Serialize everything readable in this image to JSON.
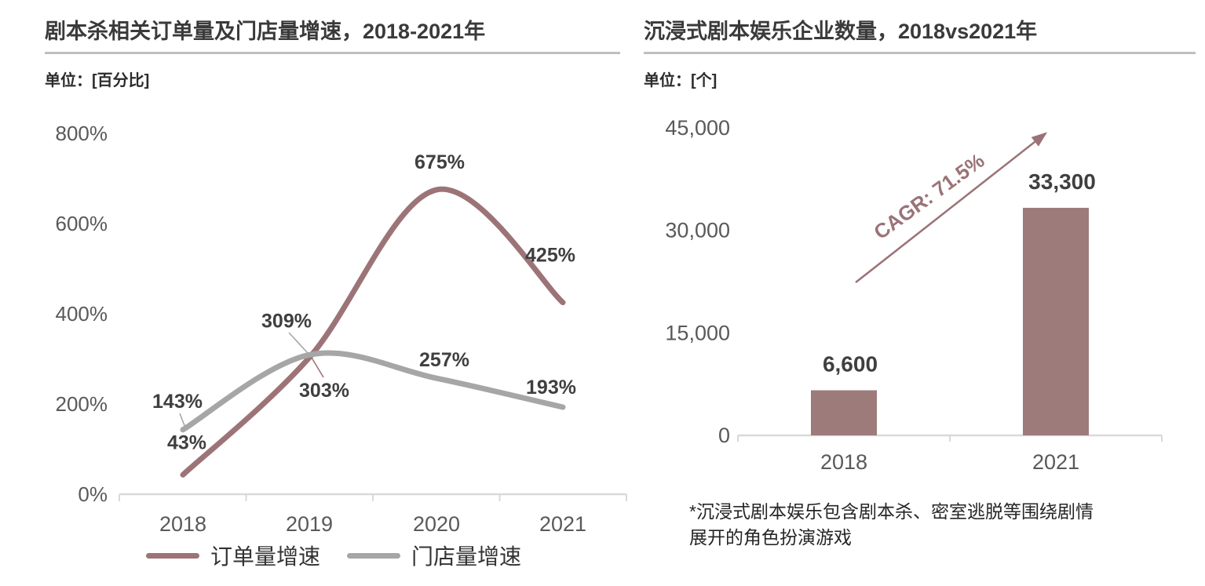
{
  "page_background": "#ffffff",
  "left_panel": {
    "unit_label": "单位：[百分比]"
  },
  "right_panel": {
    "unit_label": "单位：[个]",
    "footnote_lines": [
      "*沉浸式剧本娱乐包含剧本杀、密室逃脱等围绕剧情",
      "展开的角色扮演游戏"
    ]
  },
  "chart_data": [
    {
      "type": "line",
      "title": "剧本杀相关订单量及门店量增速，2018-2021年",
      "unit": "百分比",
      "categories": [
        "2018",
        "2019",
        "2020",
        "2021"
      ],
      "series": [
        {
          "name": "订单量增速",
          "color": "#9C7477",
          "values": [
            43,
            303,
            675,
            425
          ],
          "point_labels": [
            "43%",
            "303%",
            "675%",
            "425%"
          ]
        },
        {
          "name": "门店量增速",
          "color": "#A6A6A6",
          "values": [
            143,
            309,
            257,
            193
          ],
          "point_labels": [
            "143%",
            "309%",
            "257%",
            "193%"
          ]
        }
      ],
      "ylim": [
        0,
        800
      ],
      "ytick_values": [
        0,
        200,
        400,
        600,
        800
      ],
      "ytick_labels": [
        "0%",
        "200%",
        "400%",
        "600%",
        "800%"
      ],
      "grid": false,
      "legend_position": "bottom",
      "axis_color": "#D9D9D9",
      "tick_label_color": "#595959",
      "data_label_color": "#3F3F3F"
    },
    {
      "type": "bar",
      "title": "沉浸式剧本娱乐企业数量，2018vs2021年",
      "unit": "个",
      "categories": [
        "2018",
        "2021"
      ],
      "values": [
        6600,
        33300
      ],
      "value_labels": [
        "6,600",
        "33,300"
      ],
      "ylim": [
        0,
        45000
      ],
      "ytick_values": [
        0,
        15000,
        30000,
        45000
      ],
      "ytick_labels": [
        "0",
        "15,000",
        "30,000",
        "45,000"
      ],
      "grid": false,
      "bar_color": "#9D7B7B",
      "annotation": {
        "type": "growth-arrow",
        "text": "CAGR: 71.5%",
        "color": "#9A7377"
      },
      "axis_color": "#D9D9D9",
      "tick_label_color": "#595959",
      "data_label_color": "#3F3F3F"
    }
  ]
}
